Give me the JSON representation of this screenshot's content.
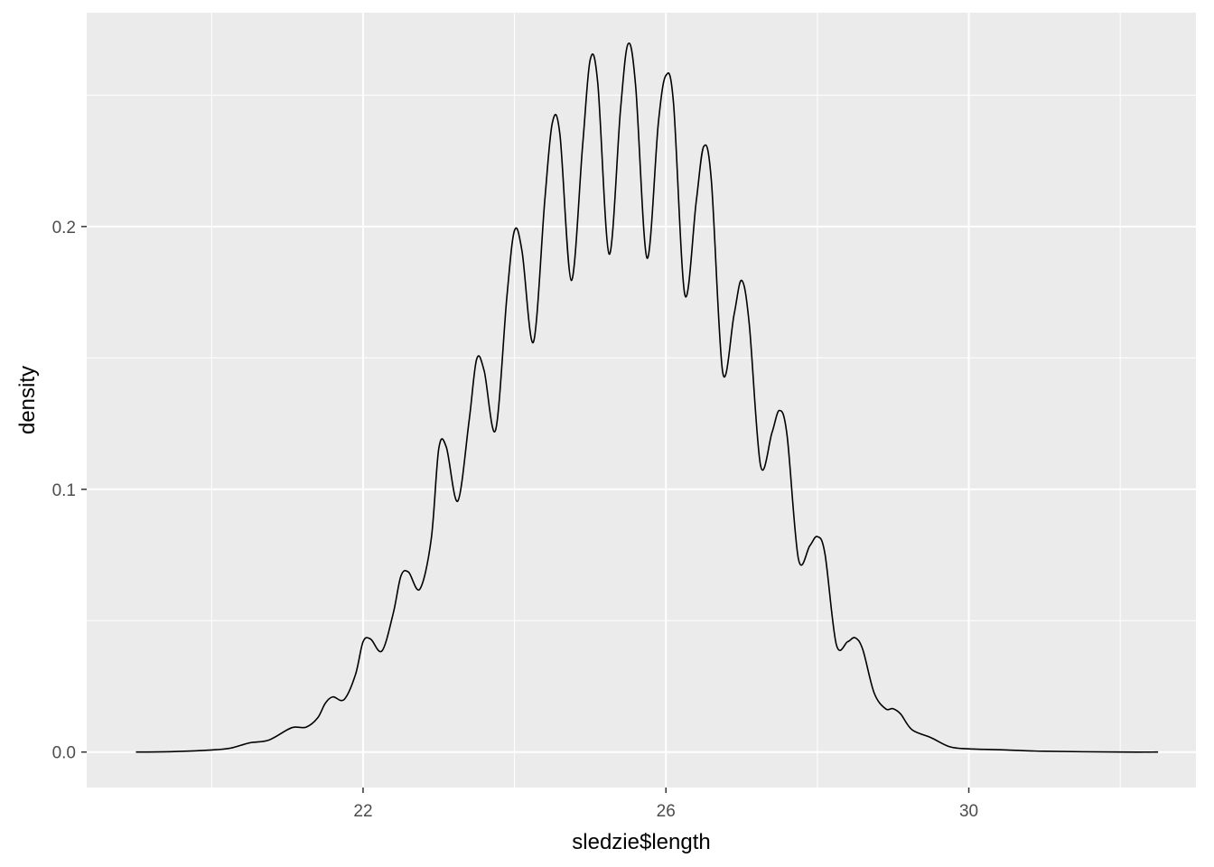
{
  "chart_data": {
    "type": "line",
    "title": "",
    "xlabel": "sledzie$length",
    "ylabel": "density",
    "xlim": [
      18.35,
      33.0
    ],
    "ylim": [
      -0.0135,
      0.2814
    ],
    "x_ticks": [
      22,
      26,
      30
    ],
    "x_tick_labels": [
      "22",
      "26",
      "30"
    ],
    "x_minor_ticks": [
      20,
      24,
      28,
      32
    ],
    "y_ticks": [
      0.0,
      0.1,
      0.2
    ],
    "y_tick_labels": [
      "0.0",
      "0.1",
      "0.2"
    ],
    "y_minor_ticks": [
      0.05,
      0.15,
      0.25
    ],
    "grid": true,
    "legend": "none",
    "colors": {
      "panel": "#ebebeb",
      "grid": "#ffffff",
      "line": "#000000"
    },
    "series": [
      {
        "x": [
          19.0,
          19.5,
          20.0,
          20.25,
          20.5,
          20.75,
          21.0,
          21.1,
          21.25,
          21.4,
          21.5,
          21.6,
          21.75,
          21.9,
          22.0,
          22.1,
          22.25,
          22.4,
          22.5,
          22.6,
          22.75,
          22.9,
          23.0,
          23.1,
          23.25,
          23.4,
          23.5,
          23.6,
          23.75,
          23.9,
          24.0,
          24.1,
          24.25,
          24.4,
          24.5,
          24.6,
          24.75,
          24.9,
          25.0,
          25.1,
          25.25,
          25.4,
          25.5,
          25.6,
          25.75,
          25.9,
          26.0,
          26.1,
          26.25,
          26.4,
          26.5,
          26.6,
          26.75,
          26.9,
          27.0,
          27.1,
          27.25,
          27.4,
          27.5,
          27.6,
          27.75,
          27.9,
          28.0,
          28.1,
          28.25,
          28.4,
          28.5,
          28.6,
          28.75,
          28.9,
          29.0,
          29.1,
          29.25,
          29.5,
          29.75,
          30.0,
          30.5,
          31.0,
          32.0,
          32.5
        ],
        "y": [
          0.0,
          0.0002,
          0.0008,
          0.0015,
          0.0035,
          0.0045,
          0.0085,
          0.0095,
          0.0095,
          0.013,
          0.0185,
          0.021,
          0.02,
          0.0295,
          0.042,
          0.043,
          0.0385,
          0.053,
          0.067,
          0.0685,
          0.062,
          0.081,
          0.1155,
          0.116,
          0.0955,
          0.126,
          0.1495,
          0.145,
          0.1225,
          0.1735,
          0.1985,
          0.1905,
          0.156,
          0.21,
          0.2395,
          0.235,
          0.1795,
          0.231,
          0.2635,
          0.2545,
          0.1895,
          0.2445,
          0.2695,
          0.2535,
          0.188,
          0.2395,
          0.2575,
          0.247,
          0.174,
          0.2095,
          0.2305,
          0.2175,
          0.1445,
          0.1665,
          0.1795,
          0.163,
          0.109,
          0.1215,
          0.13,
          0.1205,
          0.0735,
          0.0785,
          0.082,
          0.0755,
          0.041,
          0.042,
          0.0435,
          0.039,
          0.0225,
          0.0165,
          0.0165,
          0.0145,
          0.0085,
          0.0055,
          0.002,
          0.0012,
          0.0008,
          0.0003,
          0.0,
          0.0
        ]
      }
    ]
  }
}
